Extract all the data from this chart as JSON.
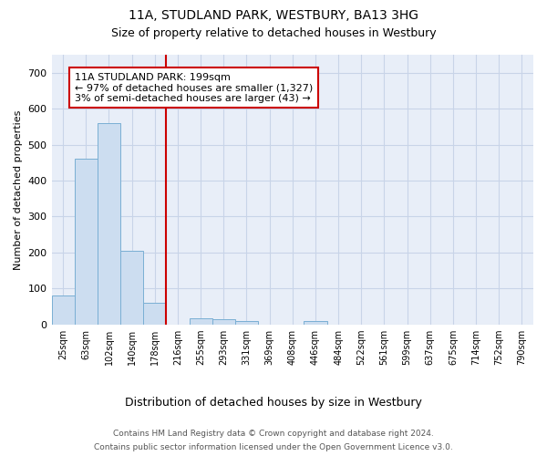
{
  "title": "11A, STUDLAND PARK, WESTBURY, BA13 3HG",
  "subtitle": "Size of property relative to detached houses in Westbury",
  "xlabel": "Distribution of detached houses by size in Westbury",
  "ylabel": "Number of detached properties",
  "categories": [
    "25sqm",
    "63sqm",
    "102sqm",
    "140sqm",
    "178sqm",
    "216sqm",
    "255sqm",
    "293sqm",
    "331sqm",
    "369sqm",
    "408sqm",
    "446sqm",
    "484sqm",
    "522sqm",
    "561sqm",
    "599sqm",
    "637sqm",
    "675sqm",
    "714sqm",
    "752sqm",
    "790sqm"
  ],
  "values": [
    80,
    460,
    560,
    205,
    60,
    0,
    18,
    14,
    8,
    0,
    0,
    10,
    0,
    0,
    0,
    0,
    0,
    0,
    0,
    0,
    0
  ],
  "bar_color": "#ccddf0",
  "bar_edge_color": "#7aafd4",
  "red_line_index": 5,
  "annotation_text": "11A STUDLAND PARK: 199sqm\n← 97% of detached houses are smaller (1,327)\n3% of semi-detached houses are larger (43) →",
  "annotation_box_color": "#ffffff",
  "annotation_box_edge_color": "#cc0000",
  "ylim": [
    0,
    750
  ],
  "yticks": [
    0,
    100,
    200,
    300,
    400,
    500,
    600,
    700
  ],
  "footer_line1": "Contains HM Land Registry data © Crown copyright and database right 2024.",
  "footer_line2": "Contains public sector information licensed under the Open Government Licence v3.0.",
  "bg_color": "#ffffff",
  "plot_bg_color": "#e8eef8",
  "grid_color": "#c8d4e8",
  "fig_width": 6.0,
  "fig_height": 5.0,
  "title_fontsize": 10,
  "subtitle_fontsize": 9
}
